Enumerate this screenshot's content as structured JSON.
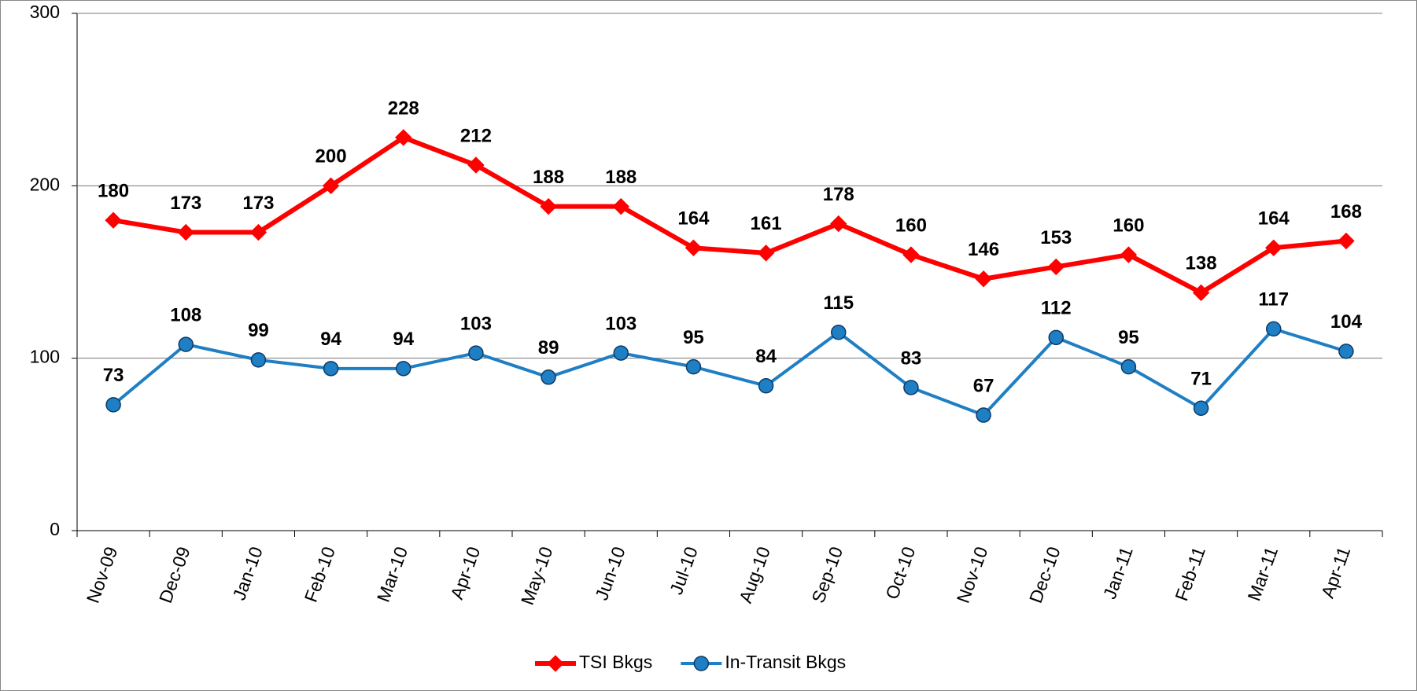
{
  "chart_data": {
    "type": "line",
    "categories": [
      "Nov-09",
      "Dec-09",
      "Jan-10",
      "Feb-10",
      "Mar-10",
      "Apr-10",
      "May-10",
      "Jun-10",
      "Jul-10",
      "Aug-10",
      "Sep-10",
      "Oct-10",
      "Nov-10",
      "Dec-10",
      "Jan-11",
      "Feb-11",
      "Mar-11",
      "Apr-11"
    ],
    "series": [
      {
        "name": "TSI Bkgs",
        "color": "#ff0000",
        "marker": "diamond",
        "values": [
          180,
          173,
          173,
          200,
          228,
          212,
          188,
          188,
          164,
          161,
          178,
          160,
          146,
          153,
          160,
          138,
          164,
          168
        ]
      },
      {
        "name": "In-Transit Bkgs",
        "color": "#1f7fc4",
        "marker": "circle",
        "values": [
          73,
          108,
          99,
          94,
          94,
          103,
          89,
          103,
          95,
          84,
          115,
          83,
          67,
          112,
          95,
          71,
          117,
          104
        ]
      }
    ],
    "ylim": [
      0,
      300
    ],
    "yticks": [
      0,
      100,
      200,
      300
    ],
    "grid": true,
    "legend": "bottom"
  }
}
